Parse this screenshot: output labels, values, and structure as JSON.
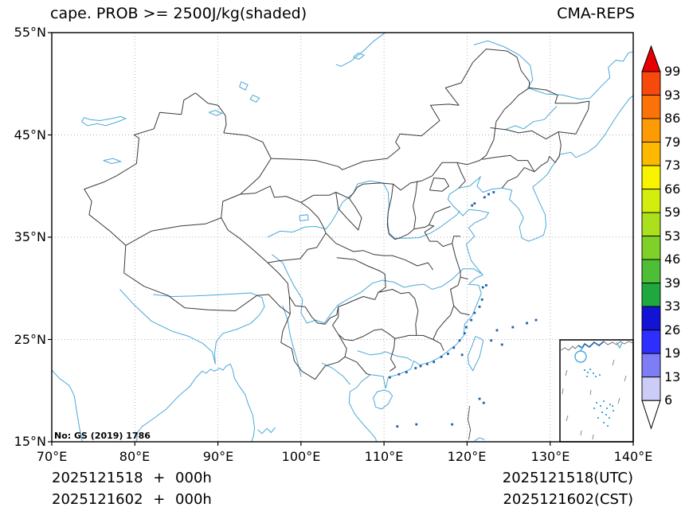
{
  "header": {
    "title": "cape. PROB >= 2500J/kg(shaded)",
    "model": "CMA-REPS"
  },
  "axes": {
    "x_ticks": [
      {
        "label": "70°E"
      },
      {
        "label": "80°E"
      },
      {
        "label": "90°E"
      },
      {
        "label": "100°E"
      },
      {
        "label": "110°E"
      },
      {
        "label": "120°E"
      },
      {
        "label": "130°E"
      },
      {
        "label": "140°E"
      }
    ],
    "y_ticks": [
      {
        "label": "55°N"
      },
      {
        "label": "45°N"
      },
      {
        "label": "35°N"
      },
      {
        "label": "25°N"
      },
      {
        "label": "15°N"
      }
    ]
  },
  "colorbar": {
    "levels": [
      "99",
      "93",
      "86",
      "79",
      "73",
      "66",
      "59",
      "53",
      "46",
      "39",
      "33",
      "26",
      "19",
      "13",
      "6"
    ],
    "band_colors": [
      "#f8490c",
      "#fb7208",
      "#fd9b05",
      "#fdb802",
      "#f8f400",
      "#d3ed0c",
      "#abe01c",
      "#7fd12a",
      "#4dbe35",
      "#20a73d",
      "#1313d6",
      "#2e2eff",
      "#7d7df5",
      "#ccccf6"
    ],
    "over_color": "#e60000",
    "under_color": "#ffffff"
  },
  "map": {
    "note": "No: GS (2019) 1786",
    "border_color": "#3a3a3a",
    "coast_color": "#4aa8d8",
    "island_color": "#1c5fa8",
    "grid_color": "#b3b3b3"
  },
  "footer": {
    "left_line1": "2025121518 + 000h",
    "left_line2": "2025121602 + 000h",
    "right_line1": "2025121518(UTC)",
    "right_line2": "2025121602(CST)"
  }
}
